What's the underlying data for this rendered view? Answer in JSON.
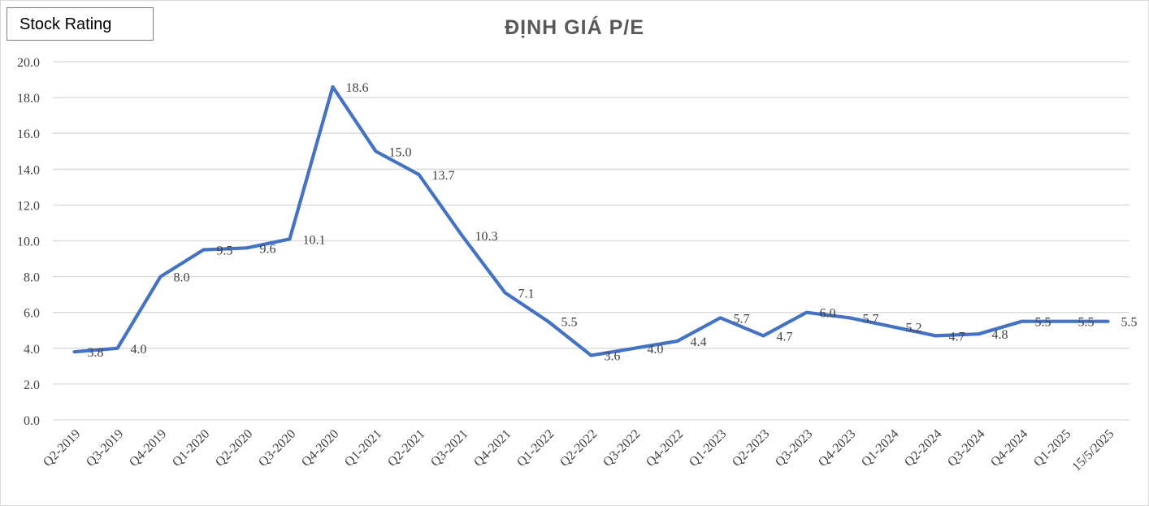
{
  "badge": {
    "label": "Stock Rating"
  },
  "chart_data": {
    "type": "line",
    "title": "ĐỊNH GIÁ P/E",
    "xlabel": "",
    "ylabel": "",
    "ylim": [
      0,
      20
    ],
    "yticks": [
      "0.0",
      "2.0",
      "4.0",
      "6.0",
      "8.0",
      "10.0",
      "12.0",
      "14.0",
      "16.0",
      "18.0",
      "20.0"
    ],
    "grid": true,
    "legend": "none",
    "categories": [
      "Q2-2019",
      "Q3-2019",
      "Q4-2019",
      "Q1-2020",
      "Q2-2020",
      "Q3-2020",
      "Q4-2020",
      "Q1-2021",
      "Q2-2021",
      "Q3-2021",
      "Q4-2021",
      "Q1-2022",
      "Q2-2022",
      "Q3-2022",
      "Q4-2022",
      "Q1-2023",
      "Q2-2023",
      "Q3-2023",
      "Q4-2023",
      "Q1-2024",
      "Q2-2024",
      "Q3-2024",
      "Q4-2024",
      "Q1-2025",
      "15/5/2025"
    ],
    "series": [
      {
        "values": [
          3.8,
          4.0,
          8.0,
          9.5,
          9.6,
          10.1,
          18.6,
          15.0,
          13.7,
          10.3,
          7.1,
          5.5,
          3.6,
          4.0,
          4.4,
          5.7,
          4.7,
          6.0,
          5.7,
          5.2,
          4.7,
          4.8,
          5.5,
          5.5,
          5.5
        ],
        "labels": [
          "3.8",
          "4.0",
          "8.0",
          "9.5",
          "9.6",
          "10.1",
          "18.6",
          "15.0",
          "13.7",
          "10.3",
          "7.1",
          "5.5",
          "3.6",
          "4.0",
          "4.4",
          "5.7",
          "4.7",
          "6.0",
          "5.7",
          "5.2",
          "4.7",
          "4.8",
          "5.5",
          "5.5",
          "5.5"
        ]
      }
    ],
    "colors": {
      "line": "#4472C4",
      "grid": "#d9d9d9",
      "text": "#404040",
      "title": "#595959"
    }
  }
}
